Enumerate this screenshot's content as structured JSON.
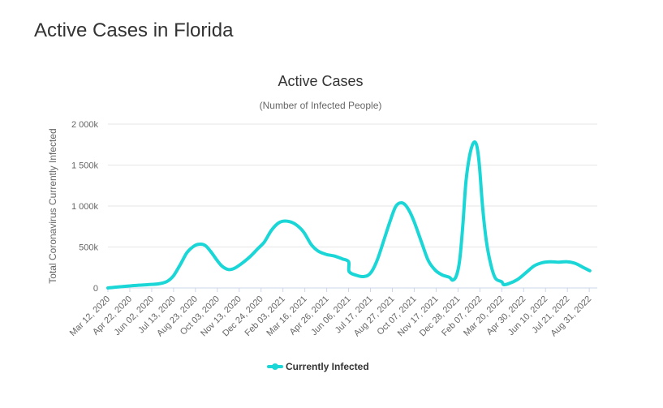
{
  "page": {
    "title": "Active Cases in Florida"
  },
  "chart_data": {
    "type": "line",
    "title": "Active Cases",
    "subtitle": "(Number of Infected People)",
    "xlabel": "",
    "ylabel": "Total Coronavirus Currently Infected",
    "ylim": [
      0,
      2000000
    ],
    "yticks": [
      {
        "value": 0,
        "label": "0"
      },
      {
        "value": 500000,
        "label": "500k"
      },
      {
        "value": 1000000,
        "label": "1 000k"
      },
      {
        "value": 1500000,
        "label": "1 500k"
      },
      {
        "value": 2000000,
        "label": "2 000k"
      }
    ],
    "xlim": [
      "2020-03-12",
      "2022-09-15"
    ],
    "xticks": [
      "Mar 12, 2020",
      "Apr 22, 2020",
      "Jun 02, 2020",
      "Jul 13, 2020",
      "Aug 23, 2020",
      "Oct 03, 2020",
      "Nov 13, 2020",
      "Dec 24, 2020",
      "Feb 03, 2021",
      "Mar 16, 2021",
      "Apr 26, 2021",
      "Jun 06, 2021",
      "Jul 17, 2021",
      "Aug 27, 2021",
      "Oct 07, 2021",
      "Nov 17, 2021",
      "Dec 28, 2021",
      "Feb 07, 2022",
      "Mar 20, 2022",
      "Apr 30, 2022",
      "Jun 10, 2022",
      "Jul 21, 2022",
      "Aug 31, 2022"
    ],
    "grid": true,
    "legend": "bottom-center",
    "color": "#1ad6d6",
    "series": [
      {
        "name": "Currently Infected",
        "points": [
          [
            "2020-03-12",
            0
          ],
          [
            "2020-04-05",
            15000
          ],
          [
            "2020-05-01",
            30000
          ],
          [
            "2020-05-25",
            40000
          ],
          [
            "2020-06-15",
            50000
          ],
          [
            "2020-07-01",
            80000
          ],
          [
            "2020-07-13",
            150000
          ],
          [
            "2020-07-26",
            290000
          ],
          [
            "2020-08-07",
            430000
          ],
          [
            "2020-08-20",
            510000
          ],
          [
            "2020-08-31",
            535000
          ],
          [
            "2020-09-10",
            520000
          ],
          [
            "2020-09-20",
            450000
          ],
          [
            "2020-10-01",
            350000
          ],
          [
            "2020-10-12",
            265000
          ],
          [
            "2020-10-24",
            225000
          ],
          [
            "2020-11-04",
            240000
          ],
          [
            "2020-11-18",
            300000
          ],
          [
            "2020-12-03",
            380000
          ],
          [
            "2020-12-18",
            480000
          ],
          [
            "2020-12-30",
            560000
          ],
          [
            "2021-01-12",
            700000
          ],
          [
            "2021-01-24",
            785000
          ],
          [
            "2021-02-03",
            815000
          ],
          [
            "2021-02-15",
            810000
          ],
          [
            "2021-02-28",
            770000
          ],
          [
            "2021-03-14",
            680000
          ],
          [
            "2021-03-28",
            530000
          ],
          [
            "2021-04-10",
            450000
          ],
          [
            "2021-04-25",
            410000
          ],
          [
            "2021-05-10",
            390000
          ],
          [
            "2021-05-25",
            355000
          ],
          [
            "2021-06-06",
            320000
          ],
          [
            "2021-06-07",
            200000
          ],
          [
            "2021-06-20",
            155000
          ],
          [
            "2021-07-05",
            140000
          ],
          [
            "2021-07-17",
            180000
          ],
          [
            "2021-07-29",
            330000
          ],
          [
            "2021-08-10",
            560000
          ],
          [
            "2021-08-22",
            800000
          ],
          [
            "2021-09-02",
            990000
          ],
          [
            "2021-09-12",
            1040000
          ],
          [
            "2021-09-22",
            1000000
          ],
          [
            "2021-10-05",
            840000
          ],
          [
            "2021-10-20",
            570000
          ],
          [
            "2021-11-02",
            340000
          ],
          [
            "2021-11-15",
            220000
          ],
          [
            "2021-11-28",
            160000
          ],
          [
            "2021-12-12",
            130000
          ],
          [
            "2021-12-18",
            95000
          ],
          [
            "2021-12-25",
            150000
          ],
          [
            "2021-12-31",
            330000
          ],
          [
            "2022-01-06",
            760000
          ],
          [
            "2022-01-12",
            1300000
          ],
          [
            "2022-01-19",
            1620000
          ],
          [
            "2022-01-26",
            1770000
          ],
          [
            "2022-02-01",
            1740000
          ],
          [
            "2022-02-06",
            1500000
          ],
          [
            "2022-02-12",
            1000000
          ],
          [
            "2022-02-19",
            580000
          ],
          [
            "2022-02-27",
            300000
          ],
          [
            "2022-03-08",
            120000
          ],
          [
            "2022-03-20",
            75000
          ],
          [
            "2022-03-24",
            40000
          ],
          [
            "2022-04-05",
            60000
          ],
          [
            "2022-04-20",
            110000
          ],
          [
            "2022-05-05",
            190000
          ],
          [
            "2022-05-20",
            270000
          ],
          [
            "2022-06-05",
            310000
          ],
          [
            "2022-06-20",
            320000
          ],
          [
            "2022-07-05",
            315000
          ],
          [
            "2022-07-21",
            320000
          ],
          [
            "2022-08-05",
            300000
          ],
          [
            "2022-08-20",
            250000
          ],
          [
            "2022-09-01",
            210000
          ]
        ]
      }
    ]
  }
}
